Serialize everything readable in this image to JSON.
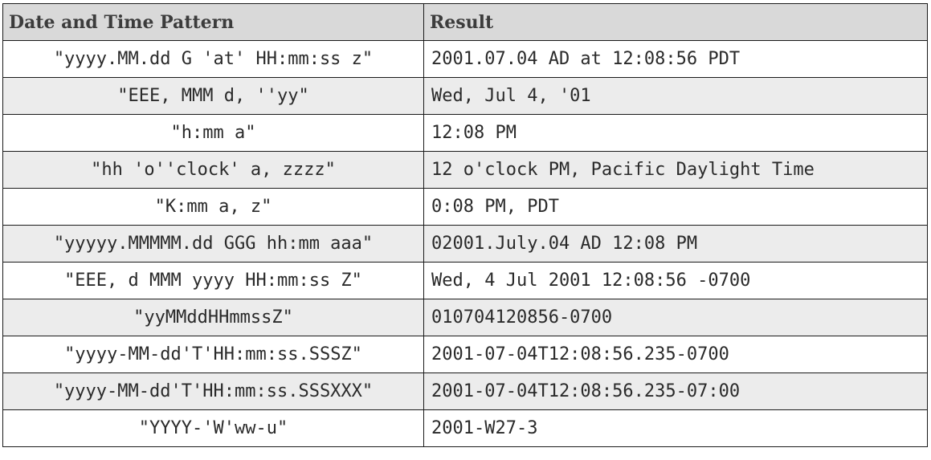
{
  "table": {
    "headers": [
      "Date and Time Pattern",
      "Result"
    ],
    "rows": [
      {
        "pattern": "\"yyyy.MM.dd G 'at' HH:mm:ss z\"",
        "result": "2001.07.04 AD at 12:08:56 PDT"
      },
      {
        "pattern": "\"EEE, MMM d, ''yy\"",
        "result": "Wed, Jul 4, '01"
      },
      {
        "pattern": "\"h:mm a\"",
        "result": "12:08 PM"
      },
      {
        "pattern": "\"hh 'o''clock' a, zzzz\"",
        "result": "12 o'clock PM, Pacific Daylight Time"
      },
      {
        "pattern": "\"K:mm a, z\"",
        "result": "0:08 PM, PDT"
      },
      {
        "pattern": "\"yyyyy.MMMMM.dd GGG hh:mm aaa\"",
        "result": "02001.July.04 AD 12:08 PM"
      },
      {
        "pattern": "\"EEE, d MMM yyyy HH:mm:ss Z\"",
        "result": "Wed, 4 Jul 2001 12:08:56 -0700"
      },
      {
        "pattern": "\"yyMMddHHmmssZ\"",
        "result": "010704120856-0700"
      },
      {
        "pattern": "\"yyyy-MM-dd'T'HH:mm:ss.SSSZ\"",
        "result": "2001-07-04T12:08:56.235-0700"
      },
      {
        "pattern": "\"yyyy-MM-dd'T'HH:mm:ss.SSSXXX\"",
        "result": "2001-07-04T12:08:56.235-07:00"
      },
      {
        "pattern": "\"YYYY-'W'ww-u\"",
        "result": "2001-W27-3"
      }
    ]
  },
  "colors": {
    "header_bg": "#d9d9d9",
    "stripe_bg": "#ececec",
    "border": "#1a1a1a"
  }
}
